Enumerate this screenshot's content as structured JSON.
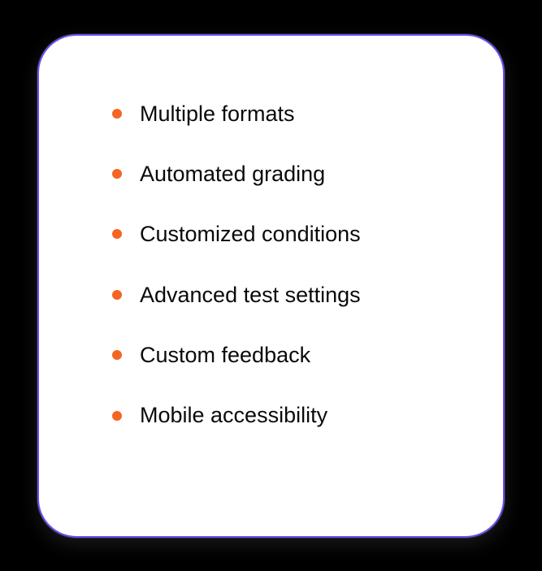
{
  "card": {
    "background_color": "#ffffff",
    "border_color": "#6b4ef9",
    "border_width": 2,
    "border_radius": 48
  },
  "bullet": {
    "color": "#f46524",
    "size": 12
  },
  "text": {
    "color": "#0a0a0a",
    "font_size": 27,
    "font_weight": 500
  },
  "features": [
    "Multiple formats",
    "Automated grading",
    "Customized conditions",
    "Advanced test settings",
    "Custom feedback",
    "Mobile accessibility"
  ]
}
